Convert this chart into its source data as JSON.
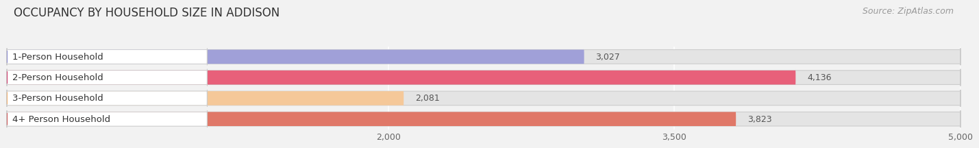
{
  "title": "OCCUPANCY BY HOUSEHOLD SIZE IN ADDISON",
  "source": "Source: ZipAtlas.com",
  "categories": [
    "1-Person Household",
    "2-Person Household",
    "3-Person Household",
    "4+ Person Household"
  ],
  "values": [
    3027,
    4136,
    2081,
    3823
  ],
  "bar_colors": [
    "#a0a0d8",
    "#e8607a",
    "#f5c899",
    "#e07868"
  ],
  "dot_colors": [
    "#8888cc",
    "#cc3366",
    "#f0b070",
    "#cc5555"
  ],
  "value_colors": [
    "#555555",
    "#ffffff",
    "#555555",
    "#ffffff"
  ],
  "xlim": [
    0,
    5000
  ],
  "xmin": 0,
  "xmax": 5000,
  "xticks": [
    2000,
    3500,
    5000
  ],
  "background_color": "#f2f2f2",
  "bar_bg_color": "#e4e4e4",
  "label_bg_color": "#ffffff",
  "title_fontsize": 12,
  "source_fontsize": 9,
  "label_fontsize": 9.5,
  "value_fontsize": 9
}
